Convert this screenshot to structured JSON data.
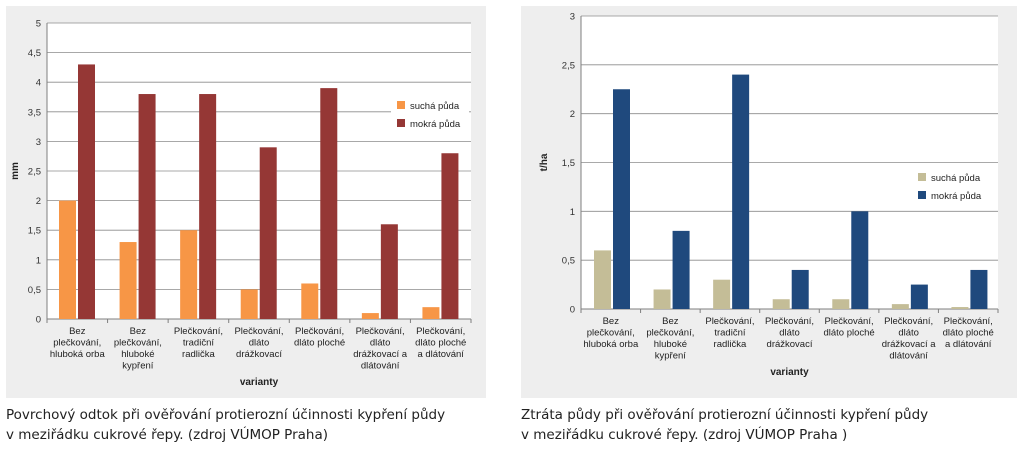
{
  "chart_data": [
    {
      "type": "bar",
      "ylabel": "mm",
      "xlabel": "varianty",
      "ylim": [
        0,
        5
      ],
      "yticks": [
        "0",
        "0,5",
        "1",
        "1,5",
        "2",
        "2,5",
        "3",
        "3,5",
        "4",
        "4,5",
        "5"
      ],
      "grid": true,
      "legend_position": "right",
      "categories": [
        [
          "Bez",
          "plečkování,",
          "hluboká orba"
        ],
        [
          "Bez",
          "plečkování,",
          "hluboké",
          "kypření"
        ],
        [
          "Plečkování,",
          "tradiční",
          "radlička"
        ],
        [
          "Plečkování,",
          "dláto",
          "drážkovací"
        ],
        [
          "Plečkování,",
          "dláto ploché"
        ],
        [
          "Plečkování,",
          "dláto",
          "drážkovací a",
          "dlátování"
        ],
        [
          "Plečkování,",
          "dláto ploché",
          "a dlátování"
        ]
      ],
      "series": [
        {
          "name": "suchá půda",
          "color": "#f79646",
          "values": [
            2.0,
            1.3,
            1.5,
            0.5,
            0.6,
            0.1,
            0.2
          ]
        },
        {
          "name": "mokrá půda",
          "color": "#953735",
          "values": [
            4.3,
            3.8,
            3.8,
            2.9,
            3.9,
            1.6,
            2.8
          ]
        }
      ]
    },
    {
      "type": "bar",
      "ylabel": "t/ha",
      "xlabel": "varianty",
      "ylim": [
        0,
        3
      ],
      "yticks": [
        "0",
        "0,5",
        "1",
        "1,5",
        "2",
        "2,5",
        "3"
      ],
      "grid": true,
      "legend_position": "right",
      "categories": [
        [
          "Bez",
          "plečkování,",
          "hluboká orba"
        ],
        [
          "Bez",
          "plečkování,",
          "hluboké",
          "kypření"
        ],
        [
          "Plečkování,",
          "tradiční",
          "radlička"
        ],
        [
          "Plečkování,",
          "dláto",
          "drážkovací"
        ],
        [
          "Plečkování,",
          "dláto ploché"
        ],
        [
          "Plečkování,",
          "dláto",
          "drážkovací a",
          "dlátování"
        ],
        [
          "Plečkování,",
          "dláto ploché",
          "a dlátování"
        ]
      ],
      "series": [
        {
          "name": "suchá půda",
          "color": "#c4bd97",
          "values": [
            0.6,
            0.2,
            0.3,
            0.1,
            0.1,
            0.05,
            0.02
          ]
        },
        {
          "name": "mokrá půda",
          "color": "#1f497d",
          "values": [
            2.25,
            0.8,
            2.4,
            0.4,
            1.0,
            0.25,
            0.4
          ]
        }
      ]
    }
  ],
  "captions": {
    "left": {
      "line1": "Povrchový odtok při ověřování protierozní účinnosti kypření půdy",
      "line2": "v meziřádku cukrové řepy. (zdroj VÚMOP Praha)"
    },
    "right": {
      "line1": "Ztráta půdy při ověřování protierozní účinnosti kypření půdy",
      "line2": "v meziřádku cukrové řepy. (zdroj VÚMOP Praha )"
    }
  }
}
